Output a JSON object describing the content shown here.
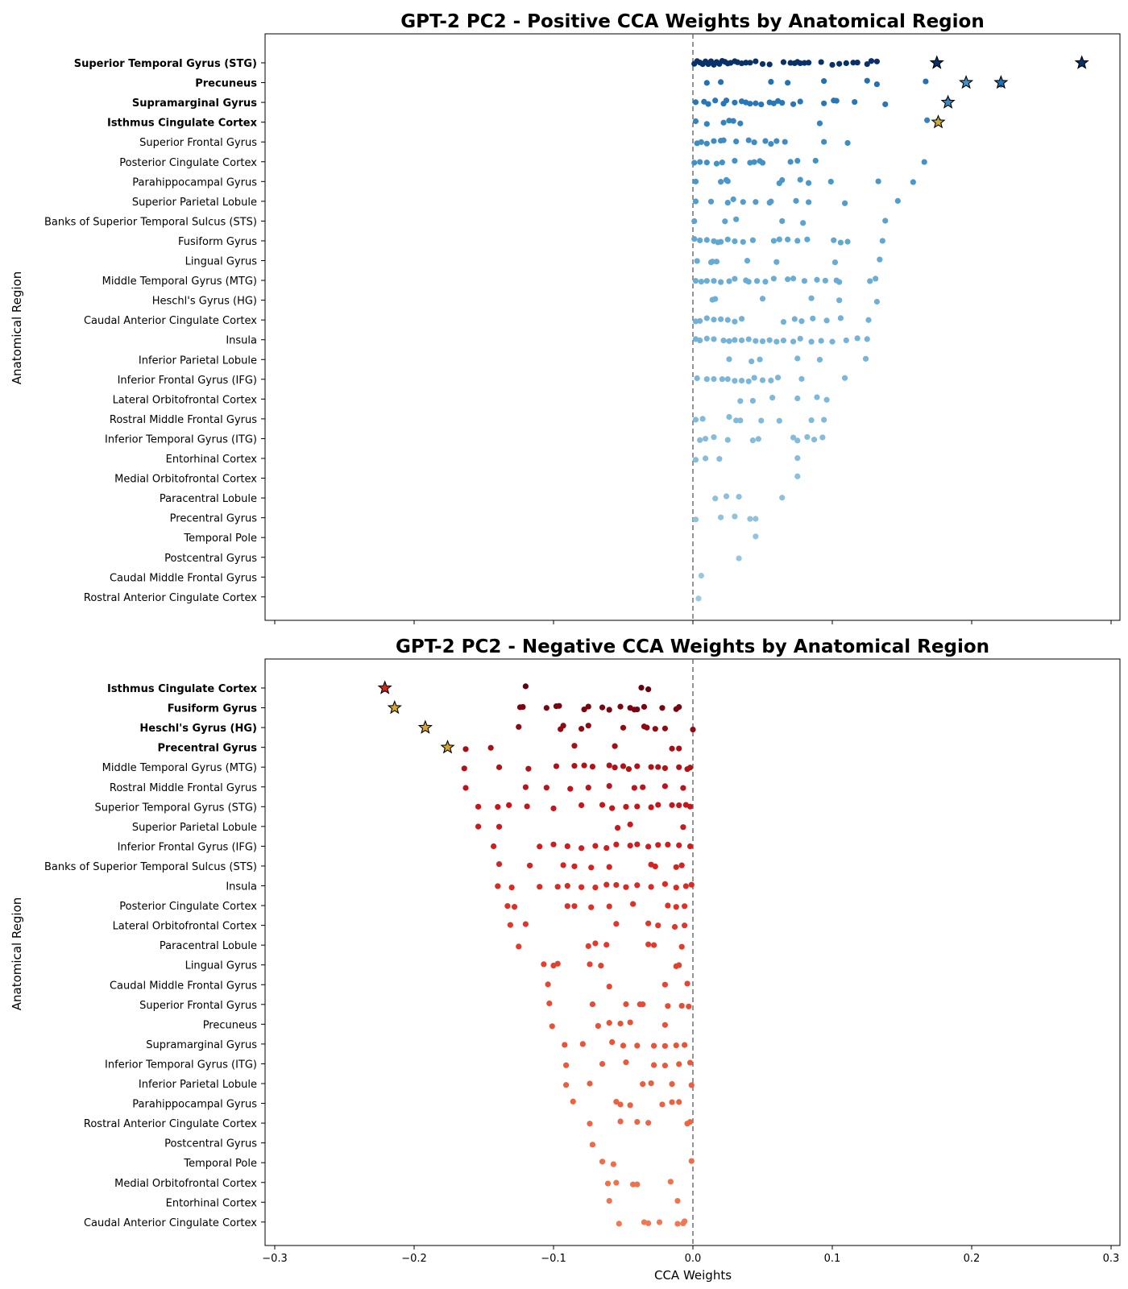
{
  "figure": {
    "x_axis_label": "CCA Weights",
    "y_axis_label": "Anatomical Region"
  },
  "chart_data": [
    {
      "type": "scatter",
      "title": "GPT-2 PC2 - Positive CCA Weights by Anatomical Region",
      "xlabel": "",
      "ylabel": "Anatomical Region",
      "xlim": [
        -0.3,
        0.3
      ],
      "x_ticks": [
        "−0.3",
        "−0.2",
        "−0.1",
        "0.0",
        "0.1",
        "0.2",
        "0.3"
      ],
      "reference_line": 0.0,
      "color_scheme": "blues",
      "bold_regions": [
        "Superior Temporal Gyrus (STG)",
        "Precuneus",
        "Supramarginal Gyrus",
        "Isthmus Cingulate Cortex"
      ],
      "categories": [
        "Superior Temporal Gyrus (STG)",
        "Precuneus",
        "Supramarginal Gyrus",
        "Isthmus Cingulate Cortex",
        "Superior Frontal Gyrus",
        "Posterior Cingulate Cortex",
        "Parahippocampal Gyrus",
        "Superior Parietal Lobule",
        "Banks of Superior Temporal Sulcus (STS)",
        "Fusiform Gyrus",
        "Lingual Gyrus",
        "Middle Temporal Gyrus (MTG)",
        "Heschl's Gyrus (HG)",
        "Caudal Anterior Cingulate Cortex",
        "Insula",
        "Inferior Parietal Lobule",
        "Inferior Frontal Gyrus (IFG)",
        "Lateral Orbitofrontal Cortex",
        "Rostral Middle Frontal Gyrus",
        "Inferior Temporal Gyrus (ITG)",
        "Entorhinal Cortex",
        "Medial Orbitofrontal Cortex",
        "Paracentral Lobule",
        "Precentral Gyrus",
        "Temporal Pole",
        "Postcentral Gyrus",
        "Caudal Middle Frontal Gyrus",
        "Rostral Anterior Cingulate Cortex"
      ],
      "point_colors": [
        "#08306b",
        "#2171b5",
        "#2877b8",
        "#3383be",
        "#3d8dc4",
        "#4292c6",
        "#4a98c9",
        "#529dcc",
        "#5aa2cf",
        "#60a7d2",
        "#66abd4",
        "#6aadd5",
        "#6eb0d7",
        "#72b2d8",
        "#75b4d8",
        "#78b5d9",
        "#7bb7da",
        "#7eb8da",
        "#81badb",
        "#84bcdb",
        "#87bddc",
        "#8abfdd",
        "#8dc0dd",
        "#90c2de",
        "#93c4de",
        "#96c5df",
        "#99c7e0",
        "#9cc9e1"
      ],
      "values": [
        [
          0.001,
          0.003,
          0.005,
          0.007,
          0.009,
          0.011,
          0.013,
          0.015,
          0.017,
          0.019,
          0.021,
          0.023,
          0.025,
          0.027,
          0.03,
          0.032,
          0.035,
          0.038,
          0.041,
          0.045,
          0.05,
          0.055,
          0.065,
          0.07,
          0.073,
          0.075,
          0.077,
          0.08,
          0.083,
          0.092,
          0.1,
          0.105,
          0.11,
          0.115,
          0.118,
          0.125,
          0.128,
          0.132,
          0.175,
          0.279
        ],
        [
          0.01,
          0.02,
          0.056,
          0.068,
          0.094,
          0.125,
          0.132,
          0.167,
          0.196,
          0.221
        ],
        [
          0.002,
          0.008,
          0.011,
          0.016,
          0.022,
          0.024,
          0.03,
          0.035,
          0.038,
          0.041,
          0.045,
          0.049,
          0.055,
          0.058,
          0.061,
          0.064,
          0.072,
          0.077,
          0.094,
          0.101,
          0.103,
          0.116,
          0.138,
          0.183
        ],
        [
          0.002,
          0.01,
          0.022,
          0.026,
          0.029,
          0.034,
          0.091,
          0.168,
          0.176
        ],
        [
          0.003,
          0.006,
          0.01,
          0.015,
          0.02,
          0.022,
          0.031,
          0.04,
          0.044,
          0.052,
          0.056,
          0.06,
          0.066,
          0.094,
          0.111
        ],
        [
          0.001,
          0.005,
          0.01,
          0.017,
          0.021,
          0.03,
          0.041,
          0.044,
          0.048,
          0.05,
          0.07,
          0.075,
          0.088,
          0.166
        ],
        [
          0.002,
          0.02,
          0.024,
          0.025,
          0.062,
          0.064,
          0.077,
          0.083,
          0.099,
          0.133,
          0.158
        ],
        [
          0.002,
          0.013,
          0.025,
          0.029,
          0.036,
          0.045,
          0.055,
          0.056,
          0.074,
          0.083,
          0.109,
          0.147
        ],
        [
          0.001,
          0.023,
          0.031,
          0.064,
          0.079,
          0.138
        ],
        [
          0.001,
          0.005,
          0.01,
          0.015,
          0.018,
          0.02,
          0.025,
          0.03,
          0.036,
          0.043,
          0.058,
          0.062,
          0.068,
          0.075,
          0.082,
          0.101,
          0.106,
          0.111,
          0.136
        ],
        [
          0.003,
          0.013,
          0.014,
          0.017,
          0.039,
          0.06,
          0.102,
          0.134
        ],
        [
          0.002,
          0.006,
          0.01,
          0.015,
          0.02,
          0.026,
          0.03,
          0.038,
          0.04,
          0.046,
          0.052,
          0.058,
          0.068,
          0.072,
          0.08,
          0.089,
          0.095,
          0.103,
          0.105,
          0.127,
          0.131
        ],
        [
          0.014,
          0.016,
          0.05,
          0.085,
          0.105,
          0.132
        ],
        [
          0.002,
          0.005,
          0.01,
          0.015,
          0.02,
          0.025,
          0.03,
          0.035,
          0.065,
          0.073,
          0.078,
          0.086,
          0.096,
          0.106,
          0.126
        ],
        [
          0.002,
          0.005,
          0.01,
          0.015,
          0.022,
          0.026,
          0.03,
          0.035,
          0.04,
          0.045,
          0.05,
          0.055,
          0.06,
          0.065,
          0.072,
          0.077,
          0.085,
          0.092,
          0.1,
          0.11,
          0.118,
          0.125
        ],
        [
          0.026,
          0.042,
          0.048,
          0.075,
          0.091,
          0.124
        ],
        [
          0.003,
          0.01,
          0.015,
          0.021,
          0.025,
          0.03,
          0.035,
          0.04,
          0.044,
          0.05,
          0.056,
          0.061,
          0.078,
          0.109
        ],
        [
          0.034,
          0.043,
          0.057,
          0.075,
          0.089,
          0.096
        ],
        [
          0.002,
          0.007,
          0.026,
          0.031,
          0.034,
          0.049,
          0.062,
          0.085,
          0.094
        ],
        [
          0.005,
          0.009,
          0.015,
          0.025,
          0.043,
          0.047,
          0.072,
          0.075,
          0.082,
          0.087,
          0.093
        ],
        [
          0.002,
          0.009,
          0.019,
          0.075
        ],
        [
          0.075
        ],
        [
          0.016,
          0.024,
          0.033,
          0.064
        ],
        [
          0.002,
          0.02,
          0.03,
          0.041,
          0.045
        ],
        [
          0.045
        ],
        [
          0.033
        ],
        [
          0.006
        ],
        [
          0.004
        ]
      ],
      "star_markers": [
        {
          "category": "Superior Temporal Gyrus (STG)",
          "x": 0.175,
          "color": "#08306b"
        },
        {
          "category": "Superior Temporal Gyrus (STG)",
          "x": 0.279,
          "color": "#08306b"
        },
        {
          "category": "Precuneus",
          "x": 0.196,
          "color": "#4292c6"
        },
        {
          "category": "Precuneus",
          "x": 0.221,
          "color": "#2171b5"
        },
        {
          "category": "Supramarginal Gyrus",
          "x": 0.183,
          "color": "#3a8ac2"
        },
        {
          "category": "Isthmus Cingulate Cortex",
          "x": 0.176,
          "color": "#c9b037"
        }
      ]
    },
    {
      "type": "scatter",
      "title": "GPT-2 PC2 - Negative CCA Weights by Anatomical Region",
      "xlabel": "CCA Weights",
      "ylabel": "Anatomical Region",
      "xlim": [
        -0.3,
        0.3
      ],
      "x_ticks": [
        "−0.3",
        "−0.2",
        "−0.1",
        "0.0",
        "0.1",
        "0.2",
        "0.3"
      ],
      "reference_line": 0.0,
      "color_scheme": "reds",
      "bold_regions": [
        "Isthmus Cingulate Cortex",
        "Fusiform Gyrus",
        "Heschl's Gyrus (HG)",
        "Precentral Gyrus"
      ],
      "categories": [
        "Isthmus Cingulate Cortex",
        "Fusiform Gyrus",
        "Heschl's Gyrus (HG)",
        "Precentral Gyrus",
        "Middle Temporal Gyrus (MTG)",
        "Rostral Middle Frontal Gyrus",
        "Superior Temporal Gyrus (STG)",
        "Superior Parietal Lobule",
        "Inferior Frontal Gyrus (IFG)",
        "Banks of Superior Temporal Sulcus (STS)",
        "Insula",
        "Posterior Cingulate Cortex",
        "Lateral Orbitofrontal Cortex",
        "Paracentral Lobule",
        "Lingual Gyrus",
        "Caudal Middle Frontal Gyrus",
        "Superior Frontal Gyrus",
        "Precuneus",
        "Supramarginal Gyrus",
        "Inferior Temporal Gyrus (ITG)",
        "Inferior Parietal Lobule",
        "Parahippocampal Gyrus",
        "Rostral Anterior Cingulate Cortex",
        "Postcentral Gyrus",
        "Temporal Pole",
        "Medial Orbitofrontal Cortex",
        "Entorhinal Cortex",
        "Caudal Anterior Cingulate Cortex"
      ],
      "point_colors": [
        "#67000d",
        "#7a0510",
        "#8e0b13",
        "#a50f15",
        "#b11218",
        "#bc141a",
        "#c4161c",
        "#cb181d",
        "#d01d1f",
        "#d42422",
        "#d92b25",
        "#dd3128",
        "#e0362b",
        "#e23b2e",
        "#e34130",
        "#e54633",
        "#e64b35",
        "#e85037",
        "#e95439",
        "#ea593c",
        "#ec5d3f",
        "#ed6141",
        "#ee6544",
        "#ef6946",
        "#f06d49",
        "#f1714b",
        "#f2744e",
        "#f37851"
      ],
      "values": [
        [
          -0.221,
          -0.12,
          -0.037,
          -0.032
        ],
        [
          -0.214,
          -0.124,
          -0.122,
          -0.105,
          -0.098,
          -0.096,
          -0.078,
          -0.075,
          -0.065,
          -0.06,
          -0.052,
          -0.045,
          -0.042,
          -0.04,
          -0.035,
          -0.022,
          -0.012,
          -0.01
        ],
        [
          -0.192,
          -0.125,
          -0.095,
          -0.093,
          -0.08,
          -0.075,
          -0.05,
          -0.035,
          -0.033,
          -0.027,
          -0.02,
          0.0
        ],
        [
          -0.176,
          -0.163,
          -0.145,
          -0.085,
          -0.056,
          -0.015,
          -0.01
        ],
        [
          -0.164,
          -0.139,
          -0.118,
          -0.098,
          -0.085,
          -0.078,
          -0.072,
          -0.06,
          -0.056,
          -0.05,
          -0.046,
          -0.04,
          -0.03,
          -0.025,
          -0.02,
          -0.01,
          -0.004,
          -0.002
        ],
        [
          -0.163,
          -0.12,
          -0.105,
          -0.088,
          -0.075,
          -0.06,
          -0.042,
          -0.036,
          -0.02,
          -0.007
        ],
        [
          -0.154,
          -0.14,
          -0.132,
          -0.119,
          -0.1,
          -0.08,
          -0.065,
          -0.058,
          -0.048,
          -0.04,
          -0.03,
          -0.025,
          -0.015,
          -0.01,
          -0.005,
          -0.002
        ],
        [
          -0.154,
          -0.139,
          -0.054,
          -0.045,
          -0.007
        ],
        [
          -0.143,
          -0.11,
          -0.1,
          -0.09,
          -0.08,
          -0.07,
          -0.062,
          -0.055,
          -0.045,
          -0.04,
          -0.032,
          -0.025,
          -0.018,
          -0.01,
          -0.002
        ],
        [
          -0.139,
          -0.117,
          -0.093,
          -0.085,
          -0.073,
          -0.06,
          -0.03,
          -0.027,
          -0.012,
          -0.008
        ],
        [
          -0.14,
          -0.13,
          -0.11,
          -0.097,
          -0.09,
          -0.08,
          -0.07,
          -0.062,
          -0.055,
          -0.048,
          -0.04,
          -0.03,
          -0.02,
          -0.012,
          -0.005,
          -0.001
        ],
        [
          -0.133,
          -0.128,
          -0.09,
          -0.085,
          -0.073,
          -0.06,
          -0.043,
          -0.018,
          -0.012,
          -0.006
        ],
        [
          -0.131,
          -0.12,
          -0.055,
          -0.032,
          -0.025,
          -0.013,
          -0.006
        ],
        [
          -0.125,
          -0.075,
          -0.07,
          -0.062,
          -0.032,
          -0.028,
          -0.008
        ],
        [
          -0.107,
          -0.1,
          -0.097,
          -0.074,
          -0.066,
          -0.012,
          -0.01
        ],
        [
          -0.104,
          -0.06,
          -0.02,
          -0.004
        ],
        [
          -0.103,
          -0.072,
          -0.048,
          -0.038,
          -0.036,
          -0.018,
          -0.008,
          -0.003
        ],
        [
          -0.101,
          -0.068,
          -0.06,
          -0.052,
          -0.045,
          -0.02
        ],
        [
          -0.092,
          -0.079,
          -0.058,
          -0.05,
          -0.04,
          -0.028,
          -0.02,
          -0.012,
          -0.006
        ],
        [
          -0.091,
          -0.065,
          -0.048,
          -0.028,
          -0.02,
          -0.01,
          -0.002
        ],
        [
          -0.091,
          -0.074,
          -0.036,
          -0.03,
          -0.015,
          -0.001
        ],
        [
          -0.086,
          -0.055,
          -0.052,
          -0.045,
          -0.022,
          -0.015,
          -0.01
        ],
        [
          -0.074,
          -0.052,
          -0.04,
          -0.032,
          -0.004,
          -0.002
        ],
        [
          -0.072
        ],
        [
          -0.065,
          -0.057,
          -0.001
        ],
        [
          -0.061,
          -0.055,
          -0.043,
          -0.04,
          -0.016
        ],
        [
          -0.06,
          -0.011
        ],
        [
          -0.053,
          -0.035,
          -0.032,
          -0.024,
          -0.011,
          -0.007,
          -0.006
        ]
      ],
      "star_markers": [
        {
          "category": "Isthmus Cingulate Cortex",
          "x": -0.221,
          "color": "#cc2a1f"
        },
        {
          "category": "Fusiform Gyrus",
          "x": -0.214,
          "color": "#d9a72a"
        },
        {
          "category": "Heschl's Gyrus (HG)",
          "x": -0.192,
          "color": "#d9a72a"
        },
        {
          "category": "Precentral Gyrus",
          "x": -0.176,
          "color": "#d9a72a"
        }
      ]
    }
  ]
}
